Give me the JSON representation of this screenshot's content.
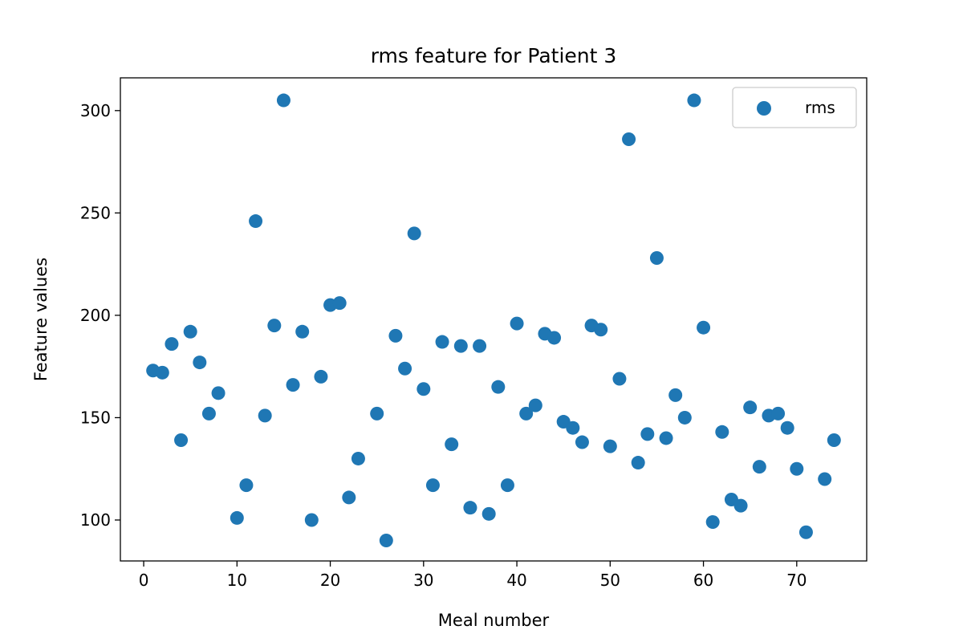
{
  "chart_data": {
    "type": "scatter",
    "title": "rms feature for Patient 3",
    "xlabel": "Meal number",
    "ylabel": "Feature values",
    "xlim": [
      -2.5,
      77.5
    ],
    "ylim": [
      80,
      316
    ],
    "xticks": [
      0,
      10,
      20,
      30,
      40,
      50,
      60,
      70
    ],
    "yticks": [
      100,
      150,
      200,
      250,
      300
    ],
    "grid": false,
    "legend_position": "top-right",
    "series": [
      {
        "name": "rms",
        "color": "#1f77b4",
        "points": [
          {
            "x": 1,
            "y": 173
          },
          {
            "x": 2,
            "y": 172
          },
          {
            "x": 3,
            "y": 186
          },
          {
            "x": 4,
            "y": 139
          },
          {
            "x": 5,
            "y": 192
          },
          {
            "x": 6,
            "y": 177
          },
          {
            "x": 7,
            "y": 152
          },
          {
            "x": 8,
            "y": 162
          },
          {
            "x": 10,
            "y": 101
          },
          {
            "x": 11,
            "y": 117
          },
          {
            "x": 12,
            "y": 246
          },
          {
            "x": 13,
            "y": 151
          },
          {
            "x": 14,
            "y": 195
          },
          {
            "x": 15,
            "y": 305
          },
          {
            "x": 16,
            "y": 166
          },
          {
            "x": 17,
            "y": 192
          },
          {
            "x": 18,
            "y": 100
          },
          {
            "x": 19,
            "y": 170
          },
          {
            "x": 20,
            "y": 205
          },
          {
            "x": 21,
            "y": 206
          },
          {
            "x": 22,
            "y": 111
          },
          {
            "x": 23,
            "y": 130
          },
          {
            "x": 25,
            "y": 152
          },
          {
            "x": 26,
            "y": 90
          },
          {
            "x": 27,
            "y": 190
          },
          {
            "x": 28,
            "y": 174
          },
          {
            "x": 29,
            "y": 240
          },
          {
            "x": 30,
            "y": 164
          },
          {
            "x": 31,
            "y": 117
          },
          {
            "x": 32,
            "y": 187
          },
          {
            "x": 33,
            "y": 137
          },
          {
            "x": 34,
            "y": 185
          },
          {
            "x": 35,
            "y": 106
          },
          {
            "x": 36,
            "y": 185
          },
          {
            "x": 37,
            "y": 103
          },
          {
            "x": 38,
            "y": 165
          },
          {
            "x": 39,
            "y": 117
          },
          {
            "x": 40,
            "y": 196
          },
          {
            "x": 41,
            "y": 152
          },
          {
            "x": 42,
            "y": 156
          },
          {
            "x": 43,
            "y": 191
          },
          {
            "x": 44,
            "y": 189
          },
          {
            "x": 45,
            "y": 148
          },
          {
            "x": 46,
            "y": 145
          },
          {
            "x": 47,
            "y": 138
          },
          {
            "x": 48,
            "y": 195
          },
          {
            "x": 49,
            "y": 193
          },
          {
            "x": 50,
            "y": 136
          },
          {
            "x": 51,
            "y": 169
          },
          {
            "x": 52,
            "y": 286
          },
          {
            "x": 53,
            "y": 128
          },
          {
            "x": 54,
            "y": 142
          },
          {
            "x": 55,
            "y": 228
          },
          {
            "x": 56,
            "y": 140
          },
          {
            "x": 57,
            "y": 161
          },
          {
            "x": 58,
            "y": 150
          },
          {
            "x": 59,
            "y": 305
          },
          {
            "x": 60,
            "y": 194
          },
          {
            "x": 61,
            "y": 99
          },
          {
            "x": 62,
            "y": 143
          },
          {
            "x": 63,
            "y": 110
          },
          {
            "x": 64,
            "y": 107
          },
          {
            "x": 65,
            "y": 155
          },
          {
            "x": 66,
            "y": 126
          },
          {
            "x": 67,
            "y": 151
          },
          {
            "x": 68,
            "y": 152
          },
          {
            "x": 69,
            "y": 145
          },
          {
            "x": 70,
            "y": 125
          },
          {
            "x": 71,
            "y": 94
          },
          {
            "x": 73,
            "y": 120
          },
          {
            "x": 74,
            "y": 139
          }
        ]
      }
    ]
  }
}
